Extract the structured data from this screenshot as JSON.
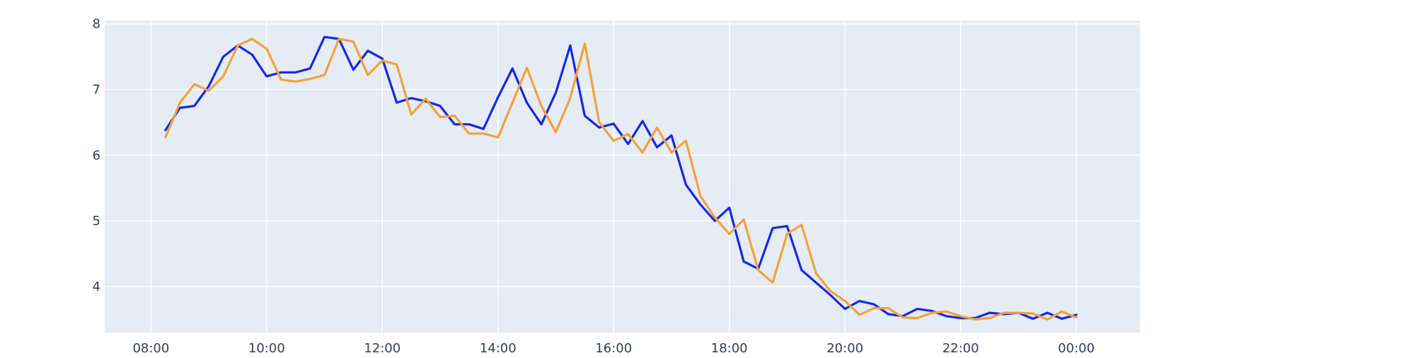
{
  "chart_data": {
    "type": "line",
    "title": "",
    "xlabel": "",
    "ylabel": "",
    "grid": true,
    "legend": "none",
    "plot_background": "#e5ecf6",
    "xlim": [
      "07:12",
      "25:06"
    ],
    "ylim": [
      3.3,
      8.05
    ],
    "x_ticks": [
      "08:00",
      "10:00",
      "12:00",
      "14:00",
      "16:00",
      "18:00",
      "20:00",
      "22:00",
      "00:00"
    ],
    "y_ticks": [
      4,
      5,
      6,
      7,
      8
    ],
    "x": [
      "08:15",
      "08:30",
      "08:45",
      "09:00",
      "09:15",
      "09:30",
      "09:45",
      "10:00",
      "10:15",
      "10:30",
      "10:45",
      "11:00",
      "11:15",
      "11:30",
      "11:45",
      "12:00",
      "12:15",
      "12:30",
      "12:45",
      "13:00",
      "13:15",
      "13:30",
      "13:45",
      "14:00",
      "14:15",
      "14:30",
      "14:45",
      "15:00",
      "15:15",
      "15:30",
      "15:45",
      "16:00",
      "16:15",
      "16:30",
      "16:45",
      "17:00",
      "17:15",
      "17:30",
      "17:45",
      "18:00",
      "18:15",
      "18:30",
      "18:45",
      "19:00",
      "19:15",
      "19:30",
      "19:45",
      "20:00",
      "20:15",
      "20:30",
      "20:45",
      "21:00",
      "21:15",
      "21:30",
      "21:45",
      "22:00",
      "22:15",
      "22:30",
      "22:45",
      "23:00",
      "23:15",
      "23:30",
      "23:45",
      "00:00"
    ],
    "series": [
      {
        "color": "#1627e8",
        "values": [
          6.38,
          6.72,
          6.75,
          7.05,
          7.5,
          7.67,
          7.53,
          7.2,
          7.26,
          7.26,
          7.32,
          7.8,
          7.77,
          7.3,
          7.59,
          7.47,
          6.8,
          6.87,
          6.82,
          6.75,
          6.47,
          6.47,
          6.4,
          6.88,
          7.32,
          6.8,
          6.47,
          6.95,
          7.67,
          6.6,
          6.42,
          6.48,
          6.17,
          6.52,
          6.12,
          6.3,
          5.55,
          5.25,
          5.0,
          5.2,
          4.38,
          4.27,
          4.89,
          4.92,
          4.25,
          4.06,
          3.87,
          3.66,
          3.78,
          3.73,
          3.58,
          3.55,
          3.66,
          3.63,
          3.55,
          3.52,
          3.52,
          3.6,
          3.58,
          3.6,
          3.51,
          3.6,
          3.51,
          3.57
        ]
      },
      {
        "color": "#f4a236",
        "values": [
          6.27,
          6.8,
          7.08,
          6.98,
          7.2,
          7.67,
          7.77,
          7.62,
          7.15,
          7.12,
          7.16,
          7.22,
          7.77,
          7.73,
          7.22,
          7.44,
          7.38,
          6.62,
          6.86,
          6.58,
          6.6,
          6.33,
          6.33,
          6.27,
          6.8,
          7.33,
          6.75,
          6.35,
          6.87,
          7.7,
          6.5,
          6.22,
          6.32,
          6.04,
          6.42,
          6.04,
          6.22,
          5.38,
          5.05,
          4.8,
          5.02,
          4.25,
          4.06,
          4.8,
          4.94,
          4.2,
          3.93,
          3.78,
          3.57,
          3.67,
          3.67,
          3.53,
          3.52,
          3.6,
          3.62,
          3.55,
          3.5,
          3.52,
          3.6,
          3.6,
          3.59,
          3.5,
          3.62,
          3.53
        ]
      }
    ]
  }
}
